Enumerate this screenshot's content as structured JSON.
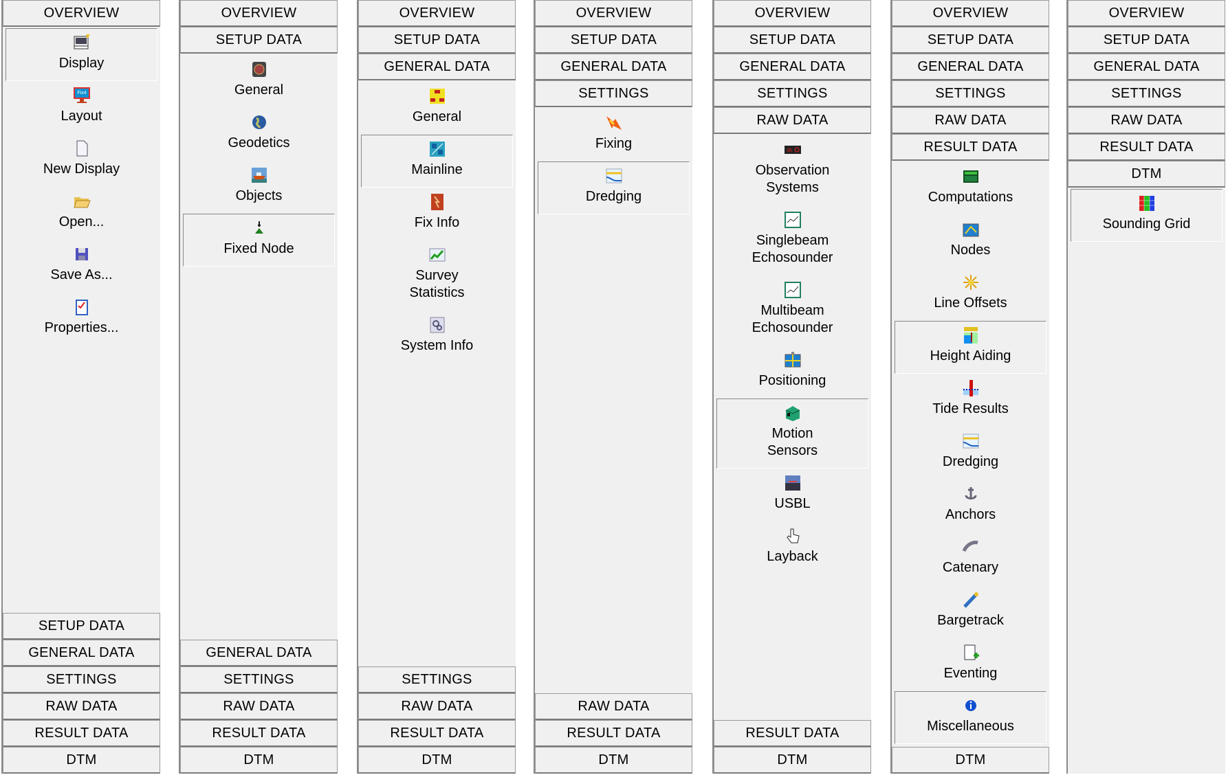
{
  "columns": [
    {
      "top_tabs": [
        "OVERVIEW"
      ],
      "items": [
        {
          "label": "Display",
          "icon": "display-icon",
          "selected": true
        },
        {
          "label": "Layout",
          "icon": "layout-icon"
        },
        {
          "label": "New Display",
          "icon": "new-document-icon"
        },
        {
          "label": "Open...",
          "icon": "open-folder-icon"
        },
        {
          "label": "Save As...",
          "icon": "save-icon"
        },
        {
          "label": "Properties...",
          "icon": "properties-checklist-icon"
        }
      ],
      "bottom_tabs": [
        "SETUP DATA",
        "GENERAL DATA",
        "SETTINGS",
        "RAW DATA",
        "RESULT DATA",
        "DTM"
      ]
    },
    {
      "top_tabs": [
        "OVERVIEW",
        "SETUP DATA"
      ],
      "items": [
        {
          "label": "General",
          "icon": "crest-icon"
        },
        {
          "label": "Geodetics",
          "icon": "globe-icon"
        },
        {
          "label": "Objects",
          "icon": "ship-icon"
        },
        {
          "label": "Fixed Node",
          "icon": "fixed-node-icon",
          "selected": true
        }
      ],
      "bottom_tabs": [
        "GENERAL DATA",
        "SETTINGS",
        "RAW DATA",
        "RESULT DATA",
        "DTM"
      ]
    },
    {
      "top_tabs": [
        "OVERVIEW",
        "SETUP DATA",
        "GENERAL DATA"
      ],
      "items": [
        {
          "label": "General",
          "icon": "org-chart-icon"
        },
        {
          "label": "Mainline",
          "icon": "mainline-icon",
          "selected": true
        },
        {
          "label": "Fix Info",
          "icon": "fix-info-icon"
        },
        {
          "label": "Survey\nStatistics",
          "icon": "statistics-chart-icon"
        },
        {
          "label": "System Info",
          "icon": "system-info-icon"
        }
      ],
      "bottom_tabs": [
        "SETTINGS",
        "RAW DATA",
        "RESULT DATA",
        "DTM"
      ]
    },
    {
      "top_tabs": [
        "OVERVIEW",
        "SETUP DATA",
        "GENERAL DATA",
        "SETTINGS"
      ],
      "items": [
        {
          "label": "Fixing",
          "icon": "fixing-icon"
        },
        {
          "label": "Dredging",
          "icon": "dredging-icon",
          "selected": true
        }
      ],
      "bottom_tabs": [
        "RAW DATA",
        "RESULT DATA",
        "DTM"
      ]
    },
    {
      "top_tabs": [
        "OVERVIEW",
        "SETUP DATA",
        "GENERAL DATA",
        "SETTINGS",
        "RAW DATA"
      ],
      "items": [
        {
          "label": "Observation\nSystems",
          "icon": "observation-display-icon"
        },
        {
          "label": "Singlebeam\nEchosounder",
          "icon": "singlebeam-chart-icon"
        },
        {
          "label": "Multibeam\nEchosounder",
          "icon": "multibeam-chart-icon"
        },
        {
          "label": "Positioning",
          "icon": "positioning-icon"
        },
        {
          "label": "Motion\nSensors",
          "icon": "motion-sensor-icon",
          "selected": true
        },
        {
          "label": "USBL",
          "icon": "usbl-icon"
        },
        {
          "label": "Layback",
          "icon": "hand-pointer-icon"
        }
      ],
      "bottom_tabs": [
        "RESULT DATA",
        "DTM"
      ]
    },
    {
      "top_tabs": [
        "OVERVIEW",
        "SETUP DATA",
        "GENERAL DATA",
        "SETTINGS",
        "RAW DATA",
        "RESULT DATA"
      ],
      "items": [
        {
          "label": "Computations",
          "icon": "computations-icon"
        },
        {
          "label": "Nodes",
          "icon": "nodes-icon"
        },
        {
          "label": "Line Offsets",
          "icon": "line-offsets-icon"
        },
        {
          "label": "Height Aiding",
          "icon": "geoid-height-icon",
          "selected": true
        },
        {
          "label": "Tide Results",
          "icon": "tide-gauge-icon"
        },
        {
          "label": "Dredging",
          "icon": "dredging-icon"
        },
        {
          "label": "Anchors",
          "icon": "anchor-icon"
        },
        {
          "label": "Catenary",
          "icon": "catenary-icon"
        },
        {
          "label": "Bargetrack",
          "icon": "bargetrack-icon"
        },
        {
          "label": "Eventing",
          "icon": "eventing-icon"
        },
        {
          "label": "Miscellaneous",
          "icon": "info-icon",
          "selected": true
        }
      ],
      "bottom_tabs": [
        "DTM"
      ]
    },
    {
      "top_tabs": [
        "OVERVIEW",
        "SETUP DATA",
        "GENERAL DATA",
        "SETTINGS",
        "RAW DATA",
        "RESULT DATA",
        "DTM"
      ],
      "items": [
        {
          "label": "Sounding Grid",
          "icon": "sounding-grid-icon",
          "selected": true
        }
      ],
      "bottom_tabs": []
    }
  ]
}
